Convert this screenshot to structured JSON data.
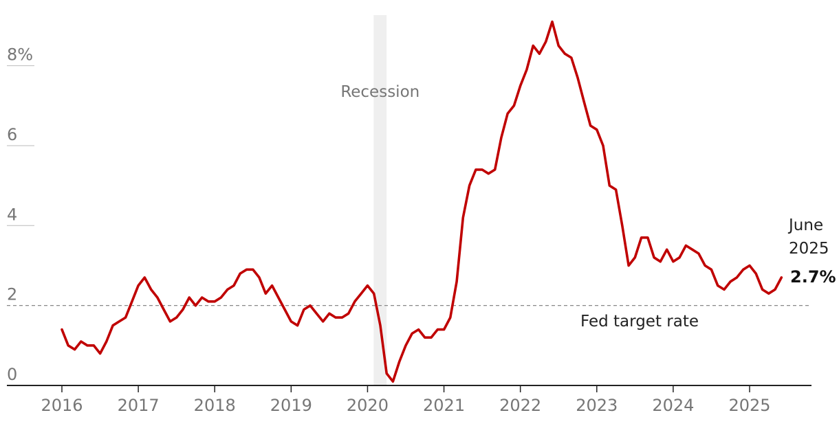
{
  "chart_data": {
    "type": "line",
    "title": "",
    "xlabel": "",
    "ylabel": "",
    "ylim": [
      0,
      9.3
    ],
    "xlim": [
      2015.45,
      2025.95
    ],
    "grid": "horizontal",
    "y_ticks": [
      {
        "value": 0,
        "label": "0"
      },
      {
        "value": 2,
        "label": "2"
      },
      {
        "value": 4,
        "label": "4"
      },
      {
        "value": 6,
        "label": "6"
      },
      {
        "value": 8,
        "label": "8%"
      }
    ],
    "x_ticks": [
      {
        "value": 2016,
        "label": "2016"
      },
      {
        "value": 2017,
        "label": "2017"
      },
      {
        "value": 2018,
        "label": "2018"
      },
      {
        "value": 2019,
        "label": "2019"
      },
      {
        "value": 2020,
        "label": "2020"
      },
      {
        "value": 2021,
        "label": "2021"
      },
      {
        "value": 2022,
        "label": "2022"
      },
      {
        "value": 2023,
        "label": "2023"
      },
      {
        "value": 2024,
        "label": "2024"
      },
      {
        "value": 2025,
        "label": "2025"
      }
    ],
    "recession": {
      "start": 2020.08,
      "end": 2020.25,
      "label": "Recession",
      "color": "#efefef"
    },
    "reference_line": {
      "value": 2,
      "label": "Fed target rate",
      "color": "#888888"
    },
    "end_annotation": {
      "line1": "June",
      "line2": "2025",
      "value_label": "2.7%"
    },
    "series": [
      {
        "color": "#c00000",
        "points": [
          [
            2016.0,
            1.4
          ],
          [
            2016.083,
            1.0
          ],
          [
            2016.167,
            0.9
          ],
          [
            2016.25,
            1.1
          ],
          [
            2016.333,
            1.0
          ],
          [
            2016.417,
            1.0
          ],
          [
            2016.5,
            0.8
          ],
          [
            2016.583,
            1.1
          ],
          [
            2016.667,
            1.5
          ],
          [
            2016.75,
            1.6
          ],
          [
            2016.833,
            1.7
          ],
          [
            2016.917,
            2.1
          ],
          [
            2017.0,
            2.5
          ],
          [
            2017.083,
            2.7
          ],
          [
            2017.167,
            2.4
          ],
          [
            2017.25,
            2.2
          ],
          [
            2017.333,
            1.9
          ],
          [
            2017.417,
            1.6
          ],
          [
            2017.5,
            1.7
          ],
          [
            2017.583,
            1.9
          ],
          [
            2017.667,
            2.2
          ],
          [
            2017.75,
            2.0
          ],
          [
            2017.833,
            2.2
          ],
          [
            2017.917,
            2.1
          ],
          [
            2018.0,
            2.1
          ],
          [
            2018.083,
            2.2
          ],
          [
            2018.167,
            2.4
          ],
          [
            2018.25,
            2.5
          ],
          [
            2018.333,
            2.8
          ],
          [
            2018.417,
            2.9
          ],
          [
            2018.5,
            2.9
          ],
          [
            2018.583,
            2.7
          ],
          [
            2018.667,
            2.3
          ],
          [
            2018.75,
            2.5
          ],
          [
            2018.833,
            2.2
          ],
          [
            2018.917,
            1.9
          ],
          [
            2019.0,
            1.6
          ],
          [
            2019.083,
            1.5
          ],
          [
            2019.167,
            1.9
          ],
          [
            2019.25,
            2.0
          ],
          [
            2019.333,
            1.8
          ],
          [
            2019.417,
            1.6
          ],
          [
            2019.5,
            1.8
          ],
          [
            2019.583,
            1.7
          ],
          [
            2019.667,
            1.7
          ],
          [
            2019.75,
            1.8
          ],
          [
            2019.833,
            2.1
          ],
          [
            2019.917,
            2.3
          ],
          [
            2020.0,
            2.5
          ],
          [
            2020.083,
            2.3
          ],
          [
            2020.167,
            1.5
          ],
          [
            2020.25,
            0.3
          ],
          [
            2020.333,
            0.1
          ],
          [
            2020.417,
            0.6
          ],
          [
            2020.5,
            1.0
          ],
          [
            2020.583,
            1.3
          ],
          [
            2020.667,
            1.4
          ],
          [
            2020.75,
            1.2
          ],
          [
            2020.833,
            1.2
          ],
          [
            2020.917,
            1.4
          ],
          [
            2021.0,
            1.4
          ],
          [
            2021.083,
            1.7
          ],
          [
            2021.167,
            2.6
          ],
          [
            2021.25,
            4.2
          ],
          [
            2021.333,
            5.0
          ],
          [
            2021.417,
            5.4
          ],
          [
            2021.5,
            5.4
          ],
          [
            2021.583,
            5.3
          ],
          [
            2021.667,
            5.4
          ],
          [
            2021.75,
            6.2
          ],
          [
            2021.833,
            6.8
          ],
          [
            2021.917,
            7.0
          ],
          [
            2022.0,
            7.5
          ],
          [
            2022.083,
            7.9
          ],
          [
            2022.167,
            8.5
          ],
          [
            2022.25,
            8.3
          ],
          [
            2022.333,
            8.6
          ],
          [
            2022.417,
            9.1
          ],
          [
            2022.5,
            8.5
          ],
          [
            2022.583,
            8.3
          ],
          [
            2022.667,
            8.2
          ],
          [
            2022.75,
            7.7
          ],
          [
            2022.833,
            7.1
          ],
          [
            2022.917,
            6.5
          ],
          [
            2023.0,
            6.4
          ],
          [
            2023.083,
            6.0
          ],
          [
            2023.167,
            5.0
          ],
          [
            2023.25,
            4.9
          ],
          [
            2023.333,
            4.0
          ],
          [
            2023.417,
            3.0
          ],
          [
            2023.5,
            3.2
          ],
          [
            2023.583,
            3.7
          ],
          [
            2023.667,
            3.7
          ],
          [
            2023.75,
            3.2
          ],
          [
            2023.833,
            3.1
          ],
          [
            2023.917,
            3.4
          ],
          [
            2024.0,
            3.1
          ],
          [
            2024.083,
            3.2
          ],
          [
            2024.167,
            3.5
          ],
          [
            2024.25,
            3.4
          ],
          [
            2024.333,
            3.3
          ],
          [
            2024.417,
            3.0
          ],
          [
            2024.5,
            2.9
          ],
          [
            2024.583,
            2.5
          ],
          [
            2024.667,
            2.4
          ],
          [
            2024.75,
            2.6
          ],
          [
            2024.833,
            2.7
          ],
          [
            2024.917,
            2.9
          ],
          [
            2025.0,
            3.0
          ],
          [
            2025.083,
            2.8
          ],
          [
            2025.167,
            2.4
          ],
          [
            2025.25,
            2.3
          ],
          [
            2025.333,
            2.4
          ],
          [
            2025.417,
            2.7
          ]
        ]
      }
    ]
  }
}
